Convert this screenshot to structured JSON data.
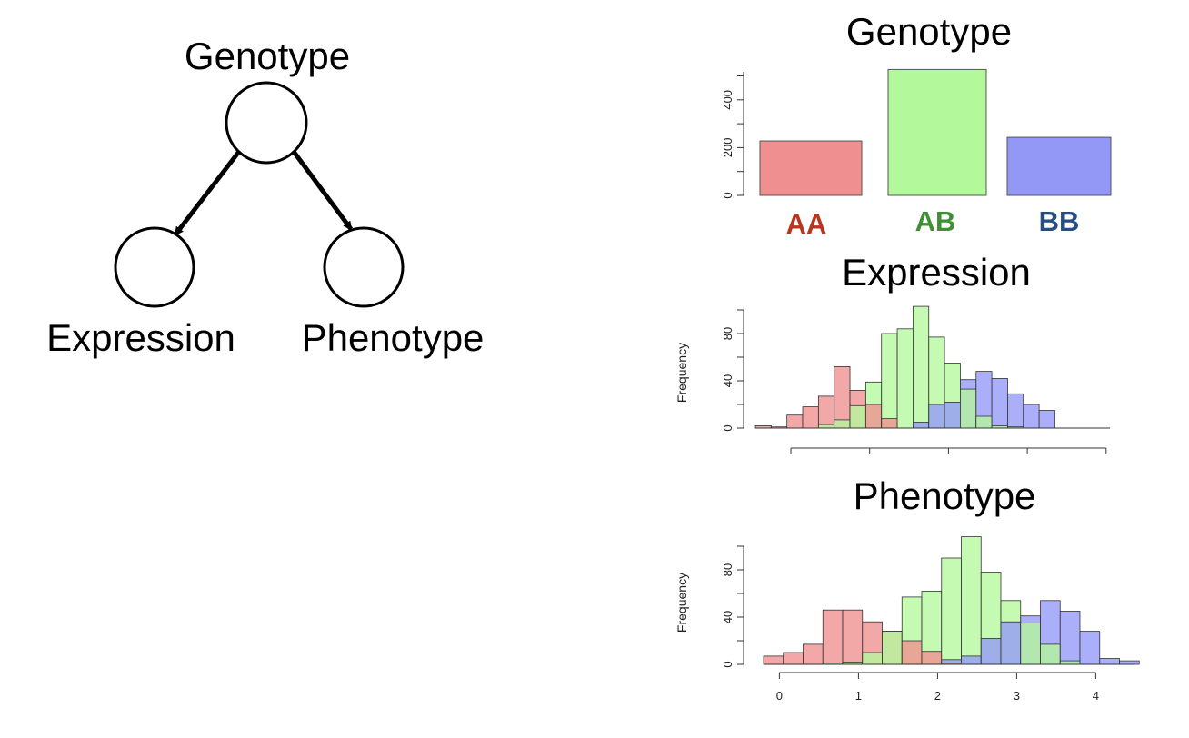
{
  "diagram": {
    "nodes": [
      {
        "id": "genotype",
        "label": "Genotype"
      },
      {
        "id": "expression",
        "label": "Expression"
      },
      {
        "id": "phenotype",
        "label": "Phenotype"
      }
    ],
    "edges": [
      {
        "from": "genotype",
        "to": "expression"
      },
      {
        "from": "genotype",
        "to": "phenotype"
      }
    ]
  },
  "colors": {
    "AA": "#f08f8f",
    "AB": "#b3f89b",
    "BB": "#9398f7",
    "AA_label": "#b8361f",
    "AB_label": "#3e8f36",
    "BB_label": "#274d82"
  },
  "chart_data": [
    {
      "type": "bar",
      "title": "Genotype",
      "categories": [
        "AA",
        "AB",
        "BB"
      ],
      "values": [
        228,
        527,
        243
      ],
      "ylim": [
        0,
        540
      ],
      "yticks": [
        0,
        200,
        400
      ],
      "xlabel": "",
      "ylabel": "",
      "grid": false
    },
    {
      "type": "bar",
      "subtype": "overlaid-histogram",
      "title": "Expression",
      "ylabel": "Frequency",
      "xlabel": "",
      "xlim": [
        -0.45,
        4.05
      ],
      "ylim": [
        0,
        103
      ],
      "yticks": [
        0,
        40,
        80
      ],
      "xticks": [
        0,
        1,
        2,
        3,
        4
      ],
      "bin_start": -0.45,
      "bin_width": 0.2,
      "grid": false,
      "series": [
        {
          "name": "AA",
          "values": [
            2,
            1,
            11,
            18,
            27,
            52,
            32,
            20,
            8,
            0,
            0,
            0,
            0,
            0,
            0,
            0,
            0,
            0,
            0,
            0,
            0,
            0
          ]
        },
        {
          "name": "AB",
          "values": [
            0,
            0,
            0,
            0,
            3,
            7,
            19,
            39,
            80,
            84,
            103,
            77,
            55,
            33,
            10,
            2,
            1,
            0,
            0,
            0,
            0,
            0
          ]
        },
        {
          "name": "BB",
          "values": [
            0,
            0,
            0,
            0,
            0,
            0,
            0,
            0,
            0,
            0,
            5,
            20,
            22,
            41,
            48,
            42,
            29,
            20,
            15,
            0,
            0,
            0
          ]
        }
      ]
    },
    {
      "type": "bar",
      "subtype": "overlaid-histogram",
      "title": "Phenotype",
      "ylabel": "Frequency",
      "xlabel": "",
      "xlim": [
        -0.2,
        4.5
      ],
      "ylim": [
        0,
        110
      ],
      "yticks": [
        0,
        40,
        80
      ],
      "xticks": [
        0,
        1,
        2,
        3,
        4
      ],
      "bin_start": -0.2,
      "bin_width": 0.25,
      "grid": false,
      "series": [
        {
          "name": "AA",
          "values": [
            7,
            10,
            17,
            46,
            46,
            36,
            28,
            20,
            11,
            1,
            0,
            0,
            0,
            0,
            0,
            0,
            0,
            0,
            0
          ]
        },
        {
          "name": "AB",
          "values": [
            0,
            0,
            0,
            1,
            2,
            10,
            28,
            57,
            62,
            90,
            108,
            78,
            54,
            35,
            17,
            3,
            0,
            0,
            0
          ]
        },
        {
          "name": "BB",
          "values": [
            0,
            0,
            0,
            0,
            0,
            0,
            0,
            0,
            0,
            4,
            7,
            22,
            36,
            41,
            54,
            45,
            28,
            5,
            3
          ]
        }
      ]
    }
  ]
}
